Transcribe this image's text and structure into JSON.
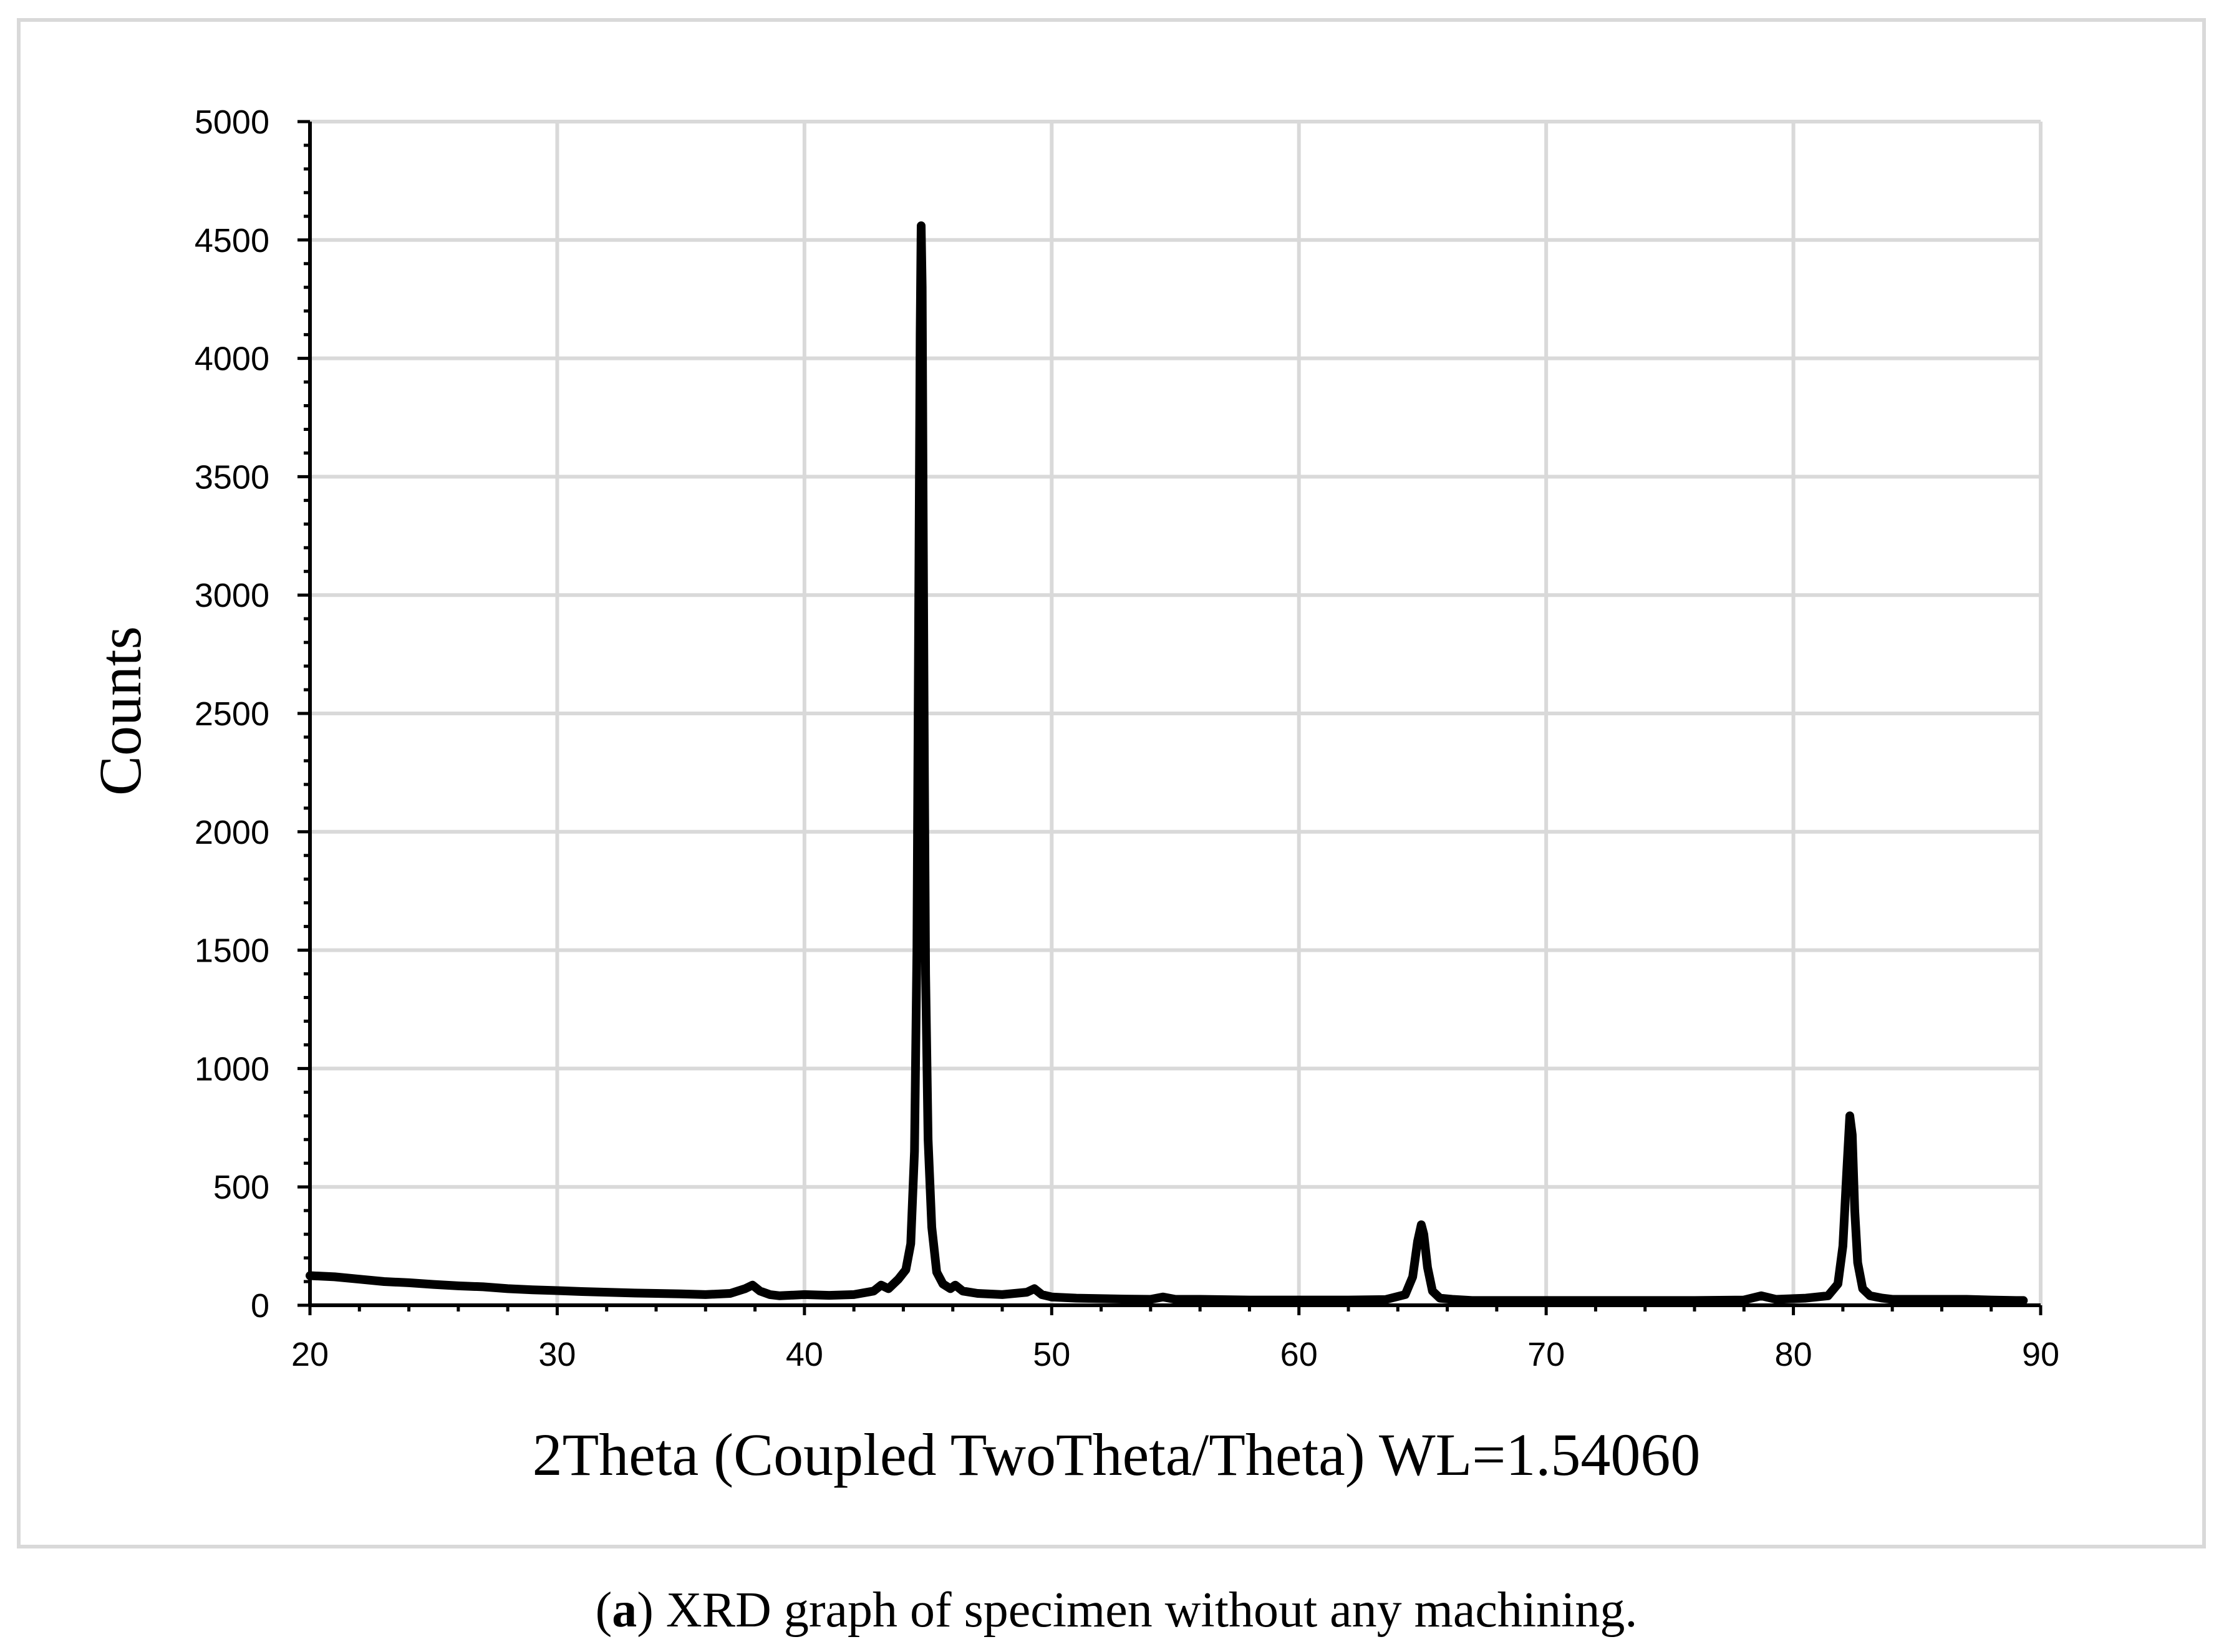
{
  "chart_data": {
    "type": "line",
    "title": "",
    "xlabel": "2Theta (Coupled TwoTheta/Theta) WL=1.54060",
    "ylabel": "Counts",
    "xlim": [
      20,
      90
    ],
    "ylim": [
      0,
      5000
    ],
    "x_ticks": [
      "20",
      "30",
      "40",
      "50",
      "60",
      "70",
      "80",
      "90"
    ],
    "y_ticks": [
      "0",
      "500",
      "1000",
      "1500",
      "2000",
      "2500",
      "3000",
      "3500",
      "4000",
      "4500",
      "5000"
    ],
    "grid": true,
    "legend": "none",
    "line_color": "#000000",
    "series": [
      {
        "x": [
          20.0,
          21.0,
          22.0,
          23.0,
          24.0,
          25.0,
          26.0,
          27.0,
          28.0,
          29.0,
          30.0,
          31.0,
          32.0,
          33.0,
          34.0,
          35.0,
          36.0,
          37.0,
          37.6,
          37.9,
          38.2,
          38.6,
          39.0,
          40.0,
          41.0,
          42.0,
          42.8,
          43.1,
          43.4,
          43.8,
          44.1,
          44.3,
          44.45,
          44.55,
          44.62,
          44.68,
          44.72,
          44.76,
          44.8,
          44.85,
          44.9,
          45.0,
          45.15,
          45.35,
          45.6,
          45.9,
          46.1,
          46.4,
          47.0,
          48.0,
          49.0,
          49.3,
          49.6,
          50.0,
          51.0,
          52.0,
          53.0,
          54.0,
          54.5,
          55.0,
          56.0,
          58.0,
          60.0,
          62.0,
          63.5,
          64.3,
          64.6,
          64.8,
          64.95,
          65.05,
          65.2,
          65.4,
          65.7,
          66.2,
          67.0,
          68.0,
          70.0,
          72.0,
          74.0,
          76.0,
          78.0,
          78.7,
          79.3,
          80.5,
          81.4,
          81.8,
          82.0,
          82.15,
          82.28,
          82.38,
          82.48,
          82.6,
          82.8,
          83.1,
          83.6,
          84.0,
          85.0,
          86.0,
          87.0,
          88.0,
          89.0,
          89.3
        ],
        "y": [
          125,
          120,
          110,
          100,
          95,
          88,
          82,
          78,
          70,
          65,
          62,
          58,
          55,
          52,
          50,
          48,
          45,
          50,
          70,
          85,
          60,
          45,
          40,
          45,
          42,
          45,
          60,
          85,
          70,
          110,
          150,
          260,
          650,
          1500,
          2900,
          4100,
          4560,
          4300,
          3400,
          2300,
          1400,
          700,
          330,
          140,
          90,
          70,
          85,
          60,
          50,
          45,
          55,
          70,
          45,
          35,
          30,
          28,
          26,
          25,
          35,
          25,
          25,
          22,
          22,
          22,
          24,
          45,
          120,
          270,
          340,
          300,
          160,
          60,
          30,
          25,
          20,
          20,
          20,
          20,
          20,
          20,
          22,
          40,
          25,
          30,
          40,
          90,
          250,
          550,
          800,
          720,
          400,
          180,
          70,
          40,
          30,
          25,
          25,
          25,
          25,
          22,
          20,
          20
        ]
      }
    ]
  },
  "caption": {
    "label": "a",
    "text": ") XRD graph of specimen without any machining."
  }
}
